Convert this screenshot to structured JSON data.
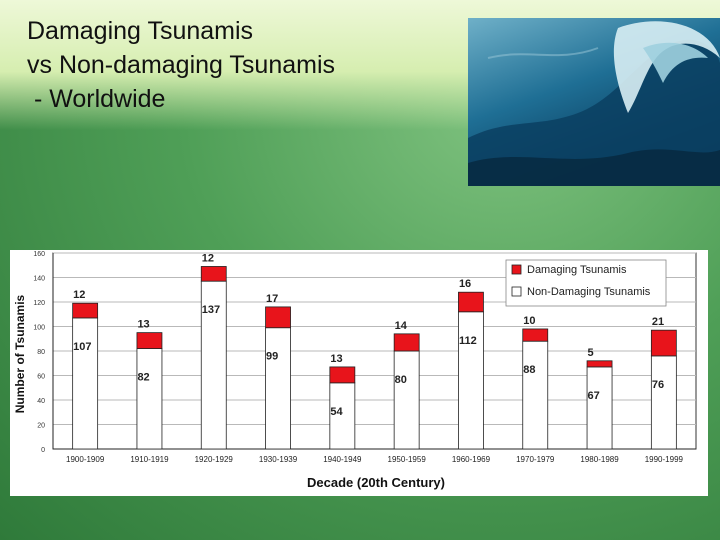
{
  "slide": {
    "title_lines": [
      "Damaging Tsunamis",
      "vs Non-damaging Tsunamis",
      " - Worldwide"
    ]
  },
  "colors": {
    "damaging": "#e8141b",
    "non_damaging": "#ffffff",
    "background_green": "#4f9f57"
  },
  "chart_data": {
    "type": "bar",
    "stacked": true,
    "title": "",
    "xlabel": "Decade (20th Century)",
    "ylabel": "Number of Tsunamis",
    "ylim": [
      0,
      160
    ],
    "yticks": [
      0,
      20,
      40,
      60,
      80,
      100,
      120,
      140,
      160
    ],
    "grid": true,
    "legend_position": "top-right",
    "categories": [
      "1900-1909",
      "1910-1919",
      "1920-1929",
      "1930-1939",
      "1940-1949",
      "1950-1959",
      "1960-1969",
      "1970-1979",
      "1980-1989",
      "1990-1999"
    ],
    "series": [
      {
        "name": "Non-Damaging Tsunamis",
        "values": [
          107,
          82,
          137,
          99,
          54,
          80,
          112,
          88,
          67,
          76
        ],
        "color": "#ffffff"
      },
      {
        "name": "Damaging Tsunamis",
        "values": [
          12,
          13,
          12,
          17,
          13,
          14,
          16,
          10,
          5,
          21
        ],
        "color": "#e8141b"
      }
    ]
  }
}
